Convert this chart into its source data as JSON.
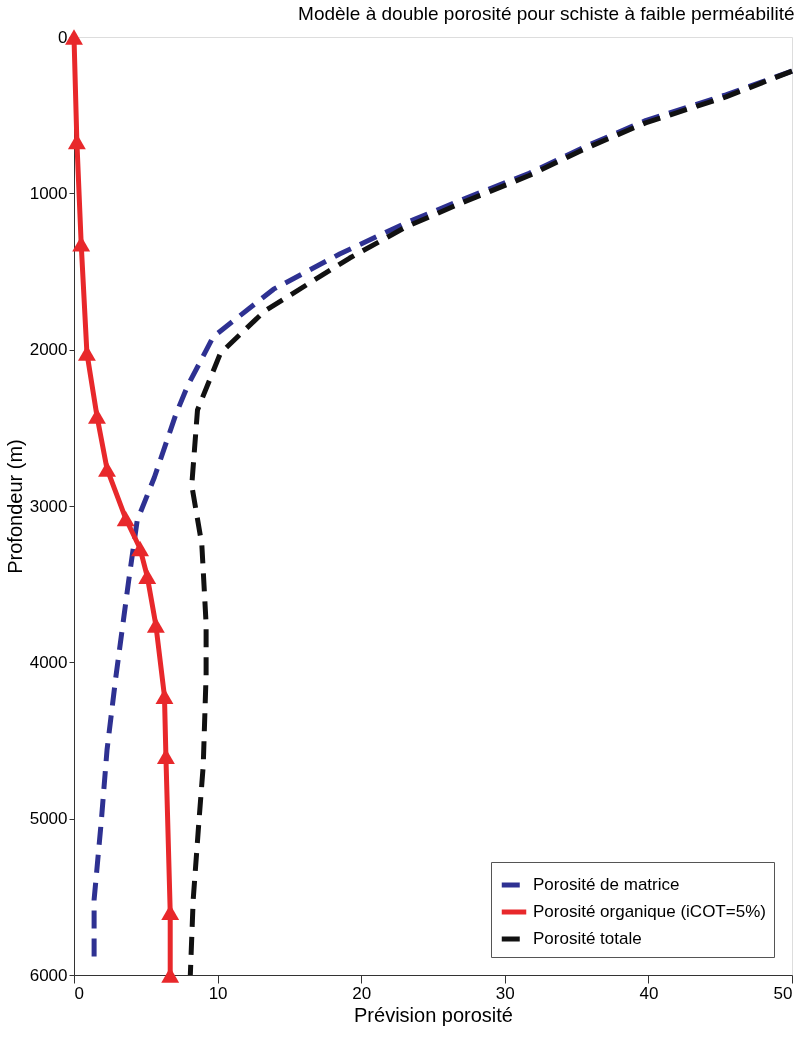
{
  "chart_data": {
    "type": "line",
    "title": "Modèle à double porosité pour schiste à faible perméabilité",
    "xlabel": "Prévision porosité",
    "ylabel": "Profondeur (m)",
    "xlim": [
      0,
      50
    ],
    "xticks": [
      0,
      10,
      20,
      30,
      40,
      50
    ],
    "ylim": [
      6000,
      0
    ],
    "yticks": [
      0,
      1000,
      2000,
      3000,
      4000,
      5000,
      6000
    ],
    "grid": false,
    "legend": "bottom right",
    "series": [
      {
        "name": "Porosité de matrice",
        "color": "#2e3192",
        "line_style": "dashed",
        "marker": "none",
        "x": [
          50.0,
          45.4,
          39.8,
          35.6,
          31.7,
          27.1,
          23.1,
          18.5,
          13.9,
          9.7,
          7.9,
          7.1,
          5.6,
          4.4,
          3.8,
          2.9,
          2.3,
          1.9,
          1.4,
          1.4
        ],
        "values": [
          218,
          370,
          535,
          701,
          872,
          1038,
          1190,
          1388,
          1613,
          1917,
          2234,
          2412,
          2816,
          3093,
          3483,
          4104,
          4560,
          5017,
          5519,
          5902
        ]
      },
      {
        "name": "Porosité organique (iCOT=5%)",
        "color": "#e8282b",
        "line_style": "solid",
        "marker": "triangle",
        "x": [
          0,
          0.2,
          0.5,
          0.9,
          1.6,
          2.3,
          3.6,
          4.6,
          5.1,
          5.7,
          6.3,
          6.4,
          6.7,
          6.7
        ],
        "values": [
          0,
          668,
          1322,
          2022,
          2425,
          2763,
          3080,
          3272,
          3450,
          3761,
          4217,
          4600,
          5598,
          6000
        ]
      },
      {
        "name": "Porosité totale",
        "color": "#111111",
        "line_style": "dashed",
        "marker": "none",
        "x": [
          50.0,
          45.4,
          39.8,
          35.6,
          31.7,
          27.1,
          23.1,
          19.2,
          13.3,
          10.2,
          8.6,
          8.2,
          8.9,
          9.2,
          9.2,
          9.0,
          8.7,
          8.3,
          8.1
        ],
        "values": [
          218,
          383,
          549,
          714,
          886,
          1057,
          1216,
          1414,
          1751,
          2022,
          2386,
          2868,
          3245,
          3754,
          4078,
          4660,
          5017,
          5519,
          6000
        ]
      }
    ]
  }
}
